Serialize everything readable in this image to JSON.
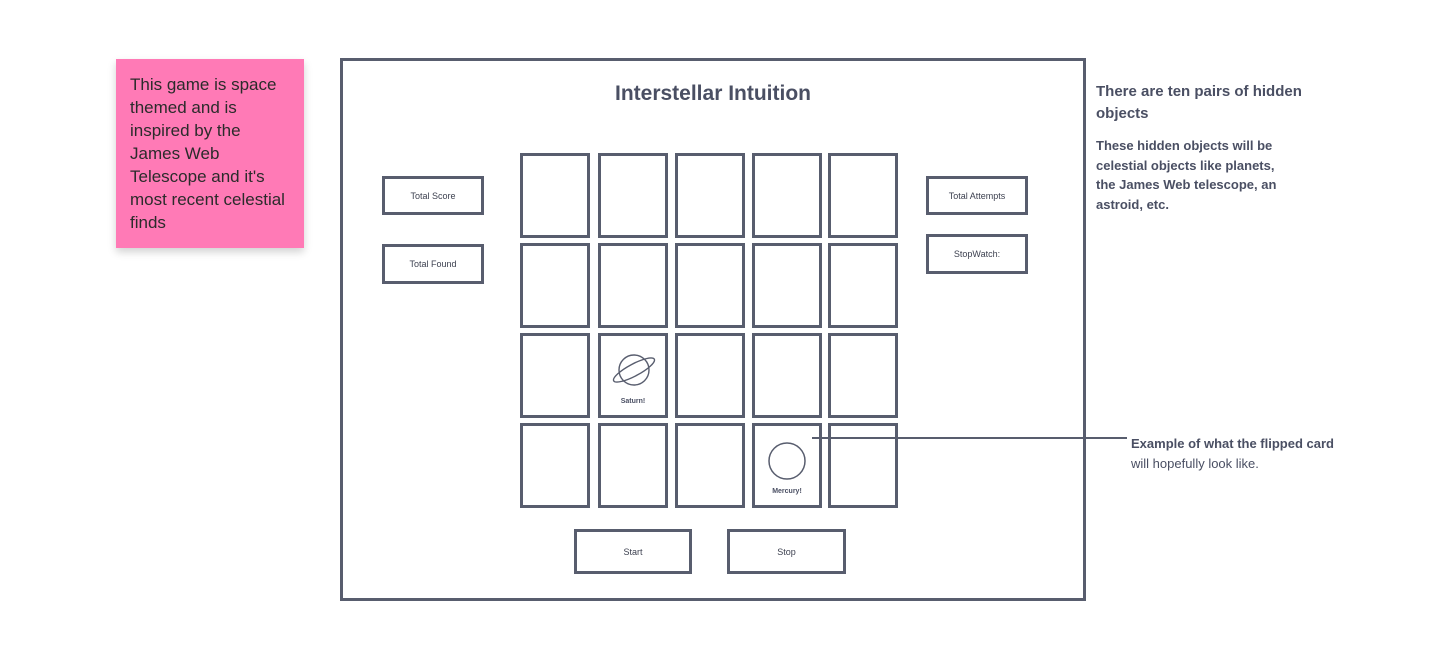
{
  "sticky_note": {
    "text": "This game is space themed and is inspired by the James Web Telescope and it's most recent celestial finds"
  },
  "game": {
    "title": "Interstellar Intuition",
    "left_panel": {
      "total_score": "Total Score",
      "total_found": "Total Found"
    },
    "right_panel": {
      "total_attempts": "Total Attempts",
      "stopwatch": "StopWatch:"
    },
    "cards": {
      "saturn_label": "Saturn!",
      "mercury_label": "Mercury!"
    },
    "buttons": {
      "start": "Start",
      "stop": "Stop"
    }
  },
  "notes": {
    "heading": "There are ten pairs of hidden objects",
    "body": "These hidden objects will be celestial objects like planets, the James Web telescope, an astroid, etc."
  },
  "callout": {
    "line1": "Example of what the flipped card",
    "line2": "will hopefully look like."
  },
  "colors": {
    "sticky": "#ff7ab6",
    "stroke": "#585d6e",
    "text": "#4a4f63"
  }
}
